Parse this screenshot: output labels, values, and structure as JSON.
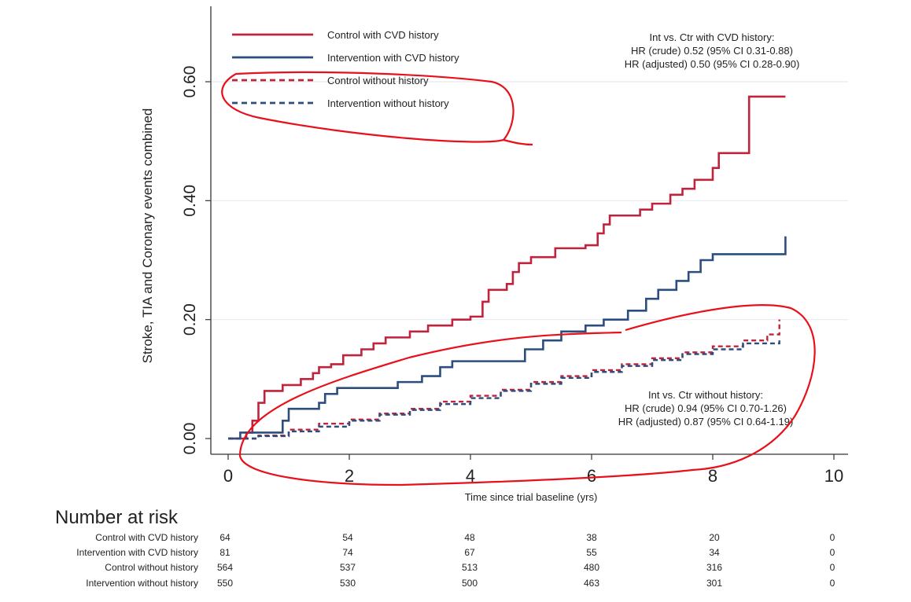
{
  "chart_data": {
    "type": "line",
    "xlabel": "Time since trial baseline (yrs)",
    "ylabel": "Stroke, TIA and Coronary events combined",
    "xlim": [
      0,
      10
    ],
    "ylim": [
      0,
      0.72
    ],
    "xticks": [
      "0",
      "2",
      "4",
      "6",
      "8",
      "10"
    ],
    "yticks": [
      "0.00",
      "0.20",
      "0.40",
      "0.60"
    ],
    "grid": "horizontal",
    "legend_position": "top-left",
    "series": [
      {
        "name": "Control with CVD history",
        "color": "#c0243c",
        "dash": "solid",
        "steps": [
          [
            0,
            0
          ],
          [
            0.3,
            0.01
          ],
          [
            0.4,
            0.03
          ],
          [
            0.5,
            0.06
          ],
          [
            0.6,
            0.08
          ],
          [
            0.9,
            0.09
          ],
          [
            1.2,
            0.1
          ],
          [
            1.4,
            0.11
          ],
          [
            1.5,
            0.12
          ],
          [
            1.7,
            0.125
          ],
          [
            1.9,
            0.14
          ],
          [
            2.2,
            0.15
          ],
          [
            2.4,
            0.16
          ],
          [
            2.6,
            0.17
          ],
          [
            3.0,
            0.18
          ],
          [
            3.3,
            0.19
          ],
          [
            3.7,
            0.2
          ],
          [
            4.0,
            0.205
          ],
          [
            4.2,
            0.23
          ],
          [
            4.3,
            0.25
          ],
          [
            4.6,
            0.26
          ],
          [
            4.7,
            0.28
          ],
          [
            4.8,
            0.295
          ],
          [
            5.0,
            0.305
          ],
          [
            5.4,
            0.32
          ],
          [
            5.9,
            0.325
          ],
          [
            6.1,
            0.345
          ],
          [
            6.2,
            0.36
          ],
          [
            6.3,
            0.375
          ],
          [
            6.8,
            0.385
          ],
          [
            7.0,
            0.395
          ],
          [
            7.3,
            0.41
          ],
          [
            7.5,
            0.42
          ],
          [
            7.7,
            0.435
          ],
          [
            8.0,
            0.455
          ],
          [
            8.1,
            0.48
          ],
          [
            8.4,
            0.48
          ],
          [
            8.6,
            0.575
          ],
          [
            9.2,
            0.575
          ]
        ]
      },
      {
        "name": "Intervention with CVD history",
        "color": "#2b4e7e",
        "dash": "solid",
        "steps": [
          [
            0,
            0
          ],
          [
            0.2,
            0.01
          ],
          [
            0.9,
            0.03
          ],
          [
            1.0,
            0.05
          ],
          [
            1.5,
            0.06
          ],
          [
            1.6,
            0.075
          ],
          [
            1.8,
            0.085
          ],
          [
            2.8,
            0.095
          ],
          [
            3.2,
            0.105
          ],
          [
            3.5,
            0.12
          ],
          [
            3.7,
            0.13
          ],
          [
            4.9,
            0.15
          ],
          [
            5.2,
            0.165
          ],
          [
            5.5,
            0.18
          ],
          [
            5.9,
            0.19
          ],
          [
            6.2,
            0.2
          ],
          [
            6.6,
            0.215
          ],
          [
            6.9,
            0.235
          ],
          [
            7.1,
            0.25
          ],
          [
            7.4,
            0.265
          ],
          [
            7.6,
            0.28
          ],
          [
            7.8,
            0.3
          ],
          [
            8.0,
            0.31
          ],
          [
            8.9,
            0.31
          ],
          [
            9.2,
            0.34
          ]
        ]
      },
      {
        "name": "Control without history",
        "color": "#c0243c",
        "dash": "dashed",
        "steps": [
          [
            0,
            0
          ],
          [
            0.5,
            0.005
          ],
          [
            1.0,
            0.015
          ],
          [
            1.5,
            0.025
          ],
          [
            2.0,
            0.032
          ],
          [
            2.5,
            0.042
          ],
          [
            3.0,
            0.05
          ],
          [
            3.5,
            0.062
          ],
          [
            4.0,
            0.072
          ],
          [
            4.5,
            0.082
          ],
          [
            5.0,
            0.095
          ],
          [
            5.5,
            0.105
          ],
          [
            6.0,
            0.115
          ],
          [
            6.5,
            0.125
          ],
          [
            7.0,
            0.135
          ],
          [
            7.5,
            0.145
          ],
          [
            8.0,
            0.155
          ],
          [
            8.5,
            0.165
          ],
          [
            8.9,
            0.175
          ],
          [
            9.1,
            0.2
          ]
        ]
      },
      {
        "name": "Intervention without history",
        "color": "#2b4e7e",
        "dash": "dashed",
        "steps": [
          [
            0,
            0
          ],
          [
            0.5,
            0.004
          ],
          [
            1.0,
            0.012
          ],
          [
            1.5,
            0.02
          ],
          [
            2.0,
            0.03
          ],
          [
            2.5,
            0.04
          ],
          [
            3.0,
            0.048
          ],
          [
            3.5,
            0.058
          ],
          [
            4.0,
            0.068
          ],
          [
            4.5,
            0.08
          ],
          [
            5.0,
            0.092
          ],
          [
            5.5,
            0.102
          ],
          [
            6.0,
            0.112
          ],
          [
            6.5,
            0.122
          ],
          [
            7.0,
            0.132
          ],
          [
            7.5,
            0.142
          ],
          [
            8.0,
            0.15
          ],
          [
            8.5,
            0.16
          ],
          [
            9.1,
            0.165
          ]
        ]
      }
    ],
    "annotations": {
      "with_history": [
        "Int vs. Ctr with CVD history:",
        "HR (crude) 0.52 (95% CI 0.31-0.88)",
        "HR (adjusted) 0.50 (95% CI 0.28-0.90)"
      ],
      "without_history": [
        "Int vs. Ctr without history:",
        "HR (crude) 0.94 (95% CI  0.70-1.26)",
        "HR (adjusted) 0.87 (95% CI 0.64-1.19)"
      ]
    },
    "number_at_risk": {
      "title": "Number at risk",
      "rows": [
        {
          "label": "Control with CVD history",
          "values": [
            "64",
            "54",
            "48",
            "38",
            "20",
            "0"
          ]
        },
        {
          "label": "Intervention with CVD history",
          "values": [
            "81",
            "74",
            "67",
            "55",
            "34",
            "0"
          ]
        },
        {
          "label": "Control without history",
          "values": [
            "564",
            "537",
            "513",
            "480",
            "316",
            "0"
          ]
        },
        {
          "label": "Intervention without history",
          "values": [
            "550",
            "530",
            "500",
            "463",
            "301",
            "0"
          ]
        }
      ]
    },
    "hand_drawn_marks": {
      "color": "#e8101a"
    }
  }
}
